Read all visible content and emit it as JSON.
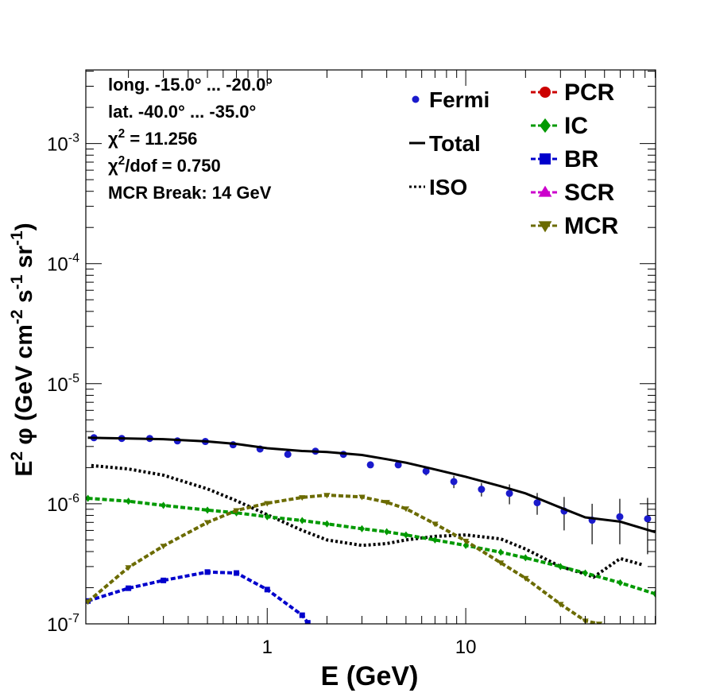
{
  "chart_data": {
    "type": "line",
    "xscale": "log",
    "yscale": "log",
    "xlim": [
      0.122,
      90.4
    ],
    "ylim": [
      1e-07,
      0.0041
    ],
    "xticks": [
      1,
      10
    ],
    "yticks": [
      {
        "value": 1e-07,
        "label": "10",
        "exponent": "-7"
      },
      {
        "value": 1e-06,
        "label": "10",
        "exponent": "-6"
      },
      {
        "value": 1e-05,
        "label": "10",
        "exponent": "-5"
      },
      {
        "value": 0.0001,
        "label": "10",
        "exponent": "-4"
      },
      {
        "value": 0.001,
        "label": "10",
        "exponent": "-3"
      }
    ],
    "xlabel": "E (GeV)",
    "ylabel": {
      "parts": [
        "E",
        "2",
        " φ (GeV cm",
        "-2",
        " s",
        "-1",
        " sr",
        "-1",
        ")"
      ],
      "superscripts": [
        1,
        3,
        5,
        7
      ]
    },
    "annotations": [
      {
        "parts": [
          "long. -15.0° ... -20.0°"
        ]
      },
      {
        "parts": [
          "lat. -40.0° ... -35.0°"
        ]
      },
      {
        "parts": [
          "χ",
          "2",
          " = 11.256"
        ],
        "superscripts": [
          1
        ]
      },
      {
        "parts": [
          "χ",
          "2",
          "/dof = 0.750"
        ],
        "superscripts": [
          1
        ]
      },
      {
        "parts": [
          "MCR Break: 14 GeV"
        ]
      }
    ],
    "series": [
      {
        "name": "Fermi",
        "color": "#1a1acc",
        "style": "points",
        "marker": "circle",
        "x": [
          0.134,
          0.185,
          0.256,
          0.353,
          0.488,
          0.673,
          0.92,
          1.27,
          1.75,
          2.42,
          3.31,
          4.57,
          6.31,
          8.71,
          12.0,
          16.6,
          22.9,
          31.3,
          43.3,
          59.7,
          82.4
        ],
        "values": [
          3.55e-06,
          3.5e-06,
          3.5e-06,
          3.34e-06,
          3.3e-06,
          3.1e-06,
          2.86e-06,
          2.58e-06,
          2.74e-06,
          2.58e-06,
          2.11e-06,
          2.11e-06,
          1.87e-06,
          1.53e-06,
          1.32e-06,
          1.22e-06,
          1.02e-06,
          8.7e-07,
          7.3e-07,
          7.8e-07,
          7.5e-07
        ],
        "errors": [
          5e-08,
          5e-08,
          5e-08,
          5e-08,
          5e-08,
          5e-08,
          6e-08,
          6e-08,
          7e-08,
          8e-08,
          1.1e-07,
          1.2e-07,
          1.5e-07,
          1.8e-07,
          1.7e-07,
          2.3e-07,
          2.1e-07,
          2.7e-07,
          2.7e-07,
          3.2e-07,
          3.7e-07
        ]
      },
      {
        "name": "Total",
        "color": "#000000",
        "style": "solid",
        "x": [
          0.125,
          0.2,
          0.3,
          0.5,
          0.7,
          1,
          1.5,
          2,
          3,
          4,
          5,
          7,
          10,
          15,
          20,
          30,
          40,
          60,
          90
        ],
        "values": [
          3.55e-06,
          3.5e-06,
          3.45e-06,
          3.3e-06,
          3.15e-06,
          2.9e-06,
          2.75e-06,
          2.7e-06,
          2.55e-06,
          2.35e-06,
          2.2e-06,
          1.93e-06,
          1.68e-06,
          1.4e-06,
          1.22e-06,
          9.3e-07,
          7.7e-07,
          7.1e-07,
          5.8e-07
        ]
      },
      {
        "name": "ISO",
        "color": "#000000",
        "style": "dotted",
        "x": [
          0.13,
          0.2,
          0.3,
          0.5,
          0.7,
          1,
          1.5,
          2,
          3,
          4,
          5,
          7,
          10,
          15,
          20,
          30,
          40,
          44,
          60,
          78
        ],
        "values": [
          2.08e-06,
          1.95e-06,
          1.73e-06,
          1.33e-06,
          1.06e-06,
          8.1e-07,
          6e-07,
          5e-07,
          4.5e-07,
          4.66e-07,
          5e-07,
          5.35e-07,
          5.5e-07,
          5.1e-07,
          4.2e-07,
          3e-07,
          2.6e-07,
          2.45e-07,
          3.5e-07,
          3.1e-07
        ]
      },
      {
        "name": "PCR",
        "color": "#cc0000",
        "style": "dashed",
        "marker": "circle",
        "x": [],
        "values": []
      },
      {
        "name": "IC",
        "color": "#009900",
        "style": "dashed",
        "marker": "diamond",
        "x": [
          0.125,
          0.2,
          0.3,
          0.5,
          0.7,
          1,
          1.5,
          2,
          3,
          4,
          5,
          7,
          10,
          15,
          20,
          30,
          40,
          60,
          90
        ],
        "values": [
          1.11e-06,
          1.05e-06,
          9.7e-07,
          8.85e-07,
          8.4e-07,
          7.8e-07,
          7.25e-07,
          6.8e-07,
          6.2e-07,
          5.85e-07,
          5.5e-07,
          5e-07,
          4.5e-07,
          3.95e-07,
          3.55e-07,
          3e-07,
          2.65e-07,
          2.2e-07,
          1.78e-07
        ]
      },
      {
        "name": "BR",
        "color": "#0000cc",
        "style": "dashed",
        "marker": "square",
        "x": [
          0.125,
          0.2,
          0.3,
          0.5,
          0.7,
          1,
          1.5,
          1.6
        ],
        "values": [
          1.55e-07,
          1.98e-07,
          2.3e-07,
          2.7e-07,
          2.65e-07,
          1.93e-07,
          1.18e-07,
          1.02e-07
        ]
      },
      {
        "name": "SCR",
        "color": "#cc00cc",
        "style": "dashed",
        "marker": "triangle-up",
        "x": [],
        "values": []
      },
      {
        "name": "MCR",
        "color": "#6b6b00",
        "style": "dashed",
        "marker": "triangle-down",
        "x": [
          0.125,
          0.2,
          0.3,
          0.5,
          0.7,
          1,
          1.5,
          2,
          3,
          4,
          5,
          7,
          10,
          15,
          20,
          30,
          40,
          47
        ],
        "values": [
          1.53e-07,
          2.95e-07,
          4.45e-07,
          7e-07,
          8.8e-07,
          1.01e-06,
          1.13e-06,
          1.18e-06,
          1.14e-06,
          1.03e-06,
          9.1e-07,
          6.8e-07,
          4.9e-07,
          3.23e-07,
          2.4e-07,
          1.46e-07,
          1.06e-07,
          1e-07
        ]
      }
    ]
  }
}
